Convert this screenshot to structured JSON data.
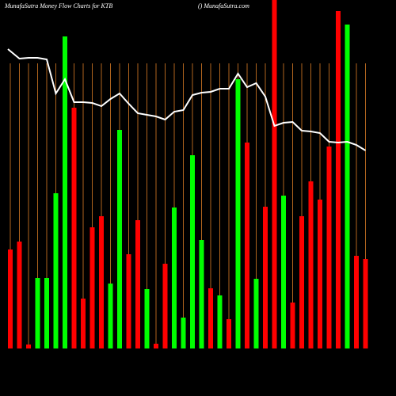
{
  "chart_data": {
    "type": "bar",
    "title": "MunafaSutra  Money Flow  Charts for KTB",
    "subtitle": "() MunafaSutra.com",
    "values": [
      125,
      135,
      5,
      89,
      89,
      196,
      394,
      304,
      63,
      153,
      167,
      82,
      276,
      119,
      162,
      75,
      6,
      107,
      178,
      39,
      244,
      137,
      76,
      67,
      37,
      340,
      260,
      88,
      179,
      440,
      193,
      58,
      167,
      211,
      188,
      255,
      426,
      409,
      117,
      113
    ],
    "colors": [
      "#ff0000",
      "#ff0000",
      "#ff0000",
      "#00ff00",
      "#00ff00",
      "#00ff00",
      "#00ff00",
      "#ff0000",
      "#ff0000",
      "#ff0000",
      "#ff0000",
      "#00ff00",
      "#00ff00",
      "#ff0000",
      "#ff0000",
      "#00ff00",
      "#ff0000",
      "#ff0000",
      "#00ff00",
      "#00ff00",
      "#00ff00",
      "#00ff00",
      "#ff0000",
      "#00ff00",
      "#ff0000",
      "#00ff00",
      "#ff0000",
      "#00ff00",
      "#ff0000",
      "#ff0000",
      "#00ff00",
      "#ff0000",
      "#ff0000",
      "#ff0000",
      "#ff0000",
      "#ff0000",
      "#ff0000",
      "#00ff00",
      "#ff0000",
      "#ff0000"
    ],
    "line_values": [
      378,
      366,
      367,
      367,
      365,
      322,
      340,
      311,
      311,
      310,
      306,
      315,
      322,
      309,
      297,
      295,
      293,
      289,
      299,
      301,
      320,
      323,
      324,
      328,
      328,
      347,
      330,
      335,
      318,
      281,
      285,
      286,
      275,
      274,
      272,
      261,
      260,
      261,
      257,
      250
    ],
    "line_color": "#ffffff",
    "grid_color": "#b0641e",
    "grid": true
  }
}
